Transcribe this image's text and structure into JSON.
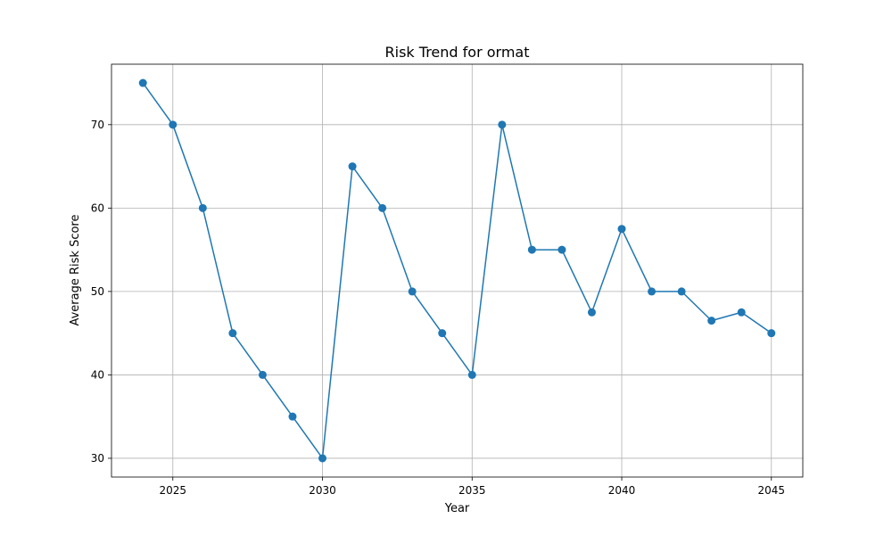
{
  "chart_data": {
    "type": "line",
    "title": "Risk Trend for ormat",
    "xlabel": "Year",
    "ylabel": "Average Risk Score",
    "x": [
      2024,
      2025,
      2026,
      2027,
      2028,
      2029,
      2030,
      2031,
      2032,
      2033,
      2034,
      2035,
      2036,
      2037,
      2038,
      2039,
      2040,
      2041,
      2042,
      2043,
      2044,
      2045
    ],
    "series": [
      {
        "values": [
          75,
          70,
          60,
          45,
          40,
          35,
          30,
          65,
          60,
          50,
          45,
          40,
          70,
          55,
          55,
          47.5,
          57.5,
          50,
          50,
          46.5,
          47.5,
          45
        ],
        "color": "#1f77b4",
        "marker": "circle"
      }
    ],
    "xlim": [
      2022.95,
      2046.05
    ],
    "ylim": [
      27.75,
      77.25
    ],
    "xticks": [
      2025,
      2030,
      2035,
      2040,
      2045
    ],
    "yticks": [
      30,
      40,
      50,
      60,
      70
    ],
    "grid": true
  }
}
